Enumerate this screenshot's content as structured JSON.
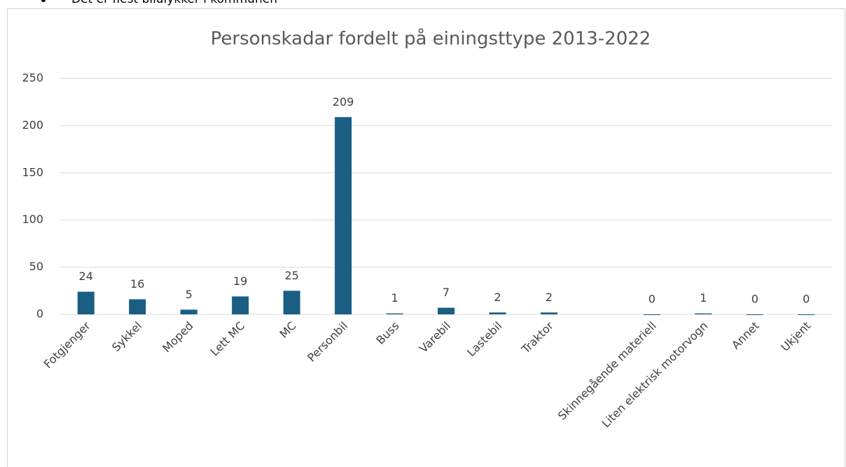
{
  "note": "Det er flest bilulykker i kommunen",
  "chart_data": {
    "type": "bar",
    "title": "Personskadar fordelt på einingsttype 2013-2022",
    "categories": [
      "Fotgjenger",
      "Sykkel",
      "Moped",
      "Lett MC",
      "MC",
      "Personbil",
      "Buss",
      "Varebil",
      "Lastebil",
      "Traktor",
      null,
      "Skinnegående materiell",
      "Liten elektrisk motorvogn",
      "Annet",
      "Ukjent"
    ],
    "values": [
      24,
      16,
      5,
      19,
      25,
      209,
      1,
      7,
      2,
      2,
      null,
      0,
      1,
      0,
      0
    ],
    "color": "#1a5e83",
    "ylim": [
      0,
      250
    ],
    "yticks": [
      0,
      50,
      100,
      150,
      200,
      250
    ],
    "grid": true
  }
}
